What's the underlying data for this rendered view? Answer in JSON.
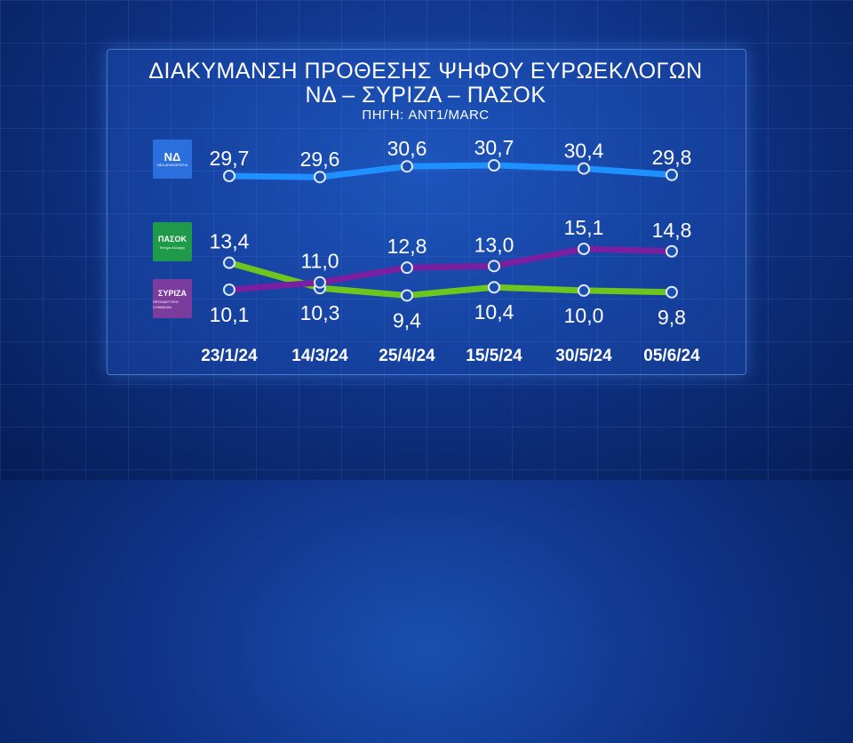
{
  "title": "ΔΙΑΚΥΜΑΝΣΗ ΠΡΟΘΕΣΗΣ ΨΗΦΟΥ ΕΥΡΩΕΚΛΟΓΩΝ",
  "subtitle": "ΝΔ – ΣΥΡΙΖΑ – ΠΑΣΟΚ",
  "source": "ΠΗΓΗ: ANT1/MARC",
  "logos": {
    "nd": {
      "big": "ΝΔ",
      "small": "ΝΕΑ ΔΗΜΟΚΡΑΤΙΑ",
      "color": "#2a6fdc"
    },
    "pasok": {
      "big": "ΠΑΣΟΚ",
      "small": "Κίνημα Αλλαγής",
      "color": "#1f9a4a"
    },
    "syriza": {
      "big": "ΣΥΡΙΖΑ",
      "small": "ΠΡΟΟΔΕΥΤΙΚΗ ΣΥΜΜΑΧΙΑ",
      "color": "#7b3c9e"
    }
  },
  "chart_data": {
    "type": "line",
    "title": "ΔΙΑΚΥΜΑΝΣΗ ΠΡΟΘΕΣΗΣ ΨΗΦΟΥ ΕΥΡΩΕΚΛΟΓΩΝ",
    "categories": [
      "23/1/24",
      "14/3/24",
      "25/4/24",
      "15/5/24",
      "30/5/24",
      "05/6/24"
    ],
    "series": [
      {
        "name": "ΝΔ",
        "color": "#1e90ff",
        "values": [
          29.7,
          29.6,
          30.6,
          30.7,
          30.4,
          29.8
        ],
        "labels": [
          "29,7",
          "29,6",
          "30,6",
          "30,7",
          "30,4",
          "29,8"
        ]
      },
      {
        "name": "ΠΑΣΟΚ",
        "color": "#6cc61e",
        "values": [
          13.4,
          10.3,
          9.4,
          10.4,
          10.0,
          9.8
        ],
        "labels": [
          "13,4",
          "10,3",
          "9,4",
          "10,4",
          "10,0",
          "9,8"
        ]
      },
      {
        "name": "ΣΥΡΙΖΑ",
        "color": "#7a1fa0",
        "values": [
          10.1,
          11.0,
          12.8,
          13.0,
          15.1,
          14.8
        ],
        "labels": [
          "10,1",
          "11,0",
          "12,8",
          "13,0",
          "15,1",
          "14,8"
        ]
      }
    ],
    "grid": true,
    "legend": "left (party logos)"
  }
}
